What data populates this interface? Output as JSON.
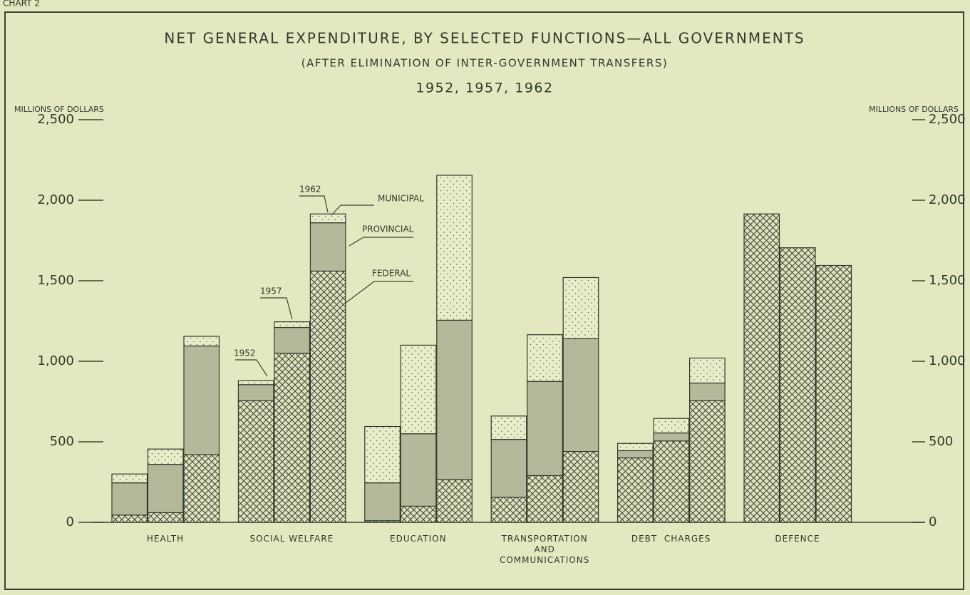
{
  "chart_data": {
    "type": "stacked_grouped_bar",
    "chart_number": "CHART 2",
    "title": "NET GENERAL EXPENDITURE, BY SELECTED FUNCTIONS—ALL GOVERNMENTS",
    "subtitle": "(AFTER ELIMINATION OF INTER-GOVERNMENT TRANSFERS)",
    "period": "1952, 1957, 1962",
    "y_label": "MILLIONS OF DOLLARS",
    "y2_label": "MILLIONS OF DOLLARS",
    "categories": [
      "HEALTH",
      "SOCIAL WELFARE",
      "EDUCATION",
      "TRANSPORTATION\nAND\nCOMMUNICATIONS",
      "DEBT  CHARGES",
      "DEFENCE"
    ],
    "bar_labels": [
      "1952",
      "1957",
      "1962"
    ],
    "series": [
      {
        "name": "FEDERAL",
        "color": "#3a4236",
        "hatch": "crosshatch",
        "values": [
          [
            45,
            60,
            420
          ],
          [
            755,
            1050,
            1560
          ],
          [
            10,
            100,
            265
          ],
          [
            155,
            290,
            440
          ],
          [
            400,
            505,
            755
          ],
          [
            1915,
            1705,
            1595
          ]
        ]
      },
      {
        "name": "PROVINCIAL",
        "color": "#b5b99c",
        "hatch": "solid",
        "values": [
          [
            200,
            300,
            675
          ],
          [
            100,
            160,
            300
          ],
          [
            235,
            450,
            990
          ],
          [
            360,
            585,
            700
          ],
          [
            45,
            50,
            110
          ],
          [
            0,
            0,
            0
          ]
        ]
      },
      {
        "name": "MUNICIPAL",
        "color": "#59624c",
        "hatch": "dots",
        "values": [
          [
            55,
            95,
            60
          ],
          [
            25,
            35,
            55
          ],
          [
            350,
            550,
            900
          ],
          [
            145,
            290,
            380
          ],
          [
            45,
            90,
            155
          ],
          [
            0,
            0,
            0
          ]
        ]
      }
    ],
    "ylim": [
      0,
      2500
    ],
    "yticks": [
      0,
      500,
      {
        "value": 1000,
        "label": "1,000"
      },
      {
        "value": 1500,
        "label": "1,500"
      },
      {
        "value": 2000,
        "label": "2,000"
      },
      {
        "value": 2500,
        "label": "2,500"
      }
    ],
    "y2lim": [
      0,
      2500
    ],
    "y2ticks": [
      0,
      500,
      {
        "value": 1000,
        "label": "1,000"
      },
      {
        "value": 1500,
        "label": "1,500"
      },
      {
        "value": 2000,
        "label": "2,000"
      },
      {
        "value": 2500,
        "label": "2,500"
      }
    ]
  }
}
